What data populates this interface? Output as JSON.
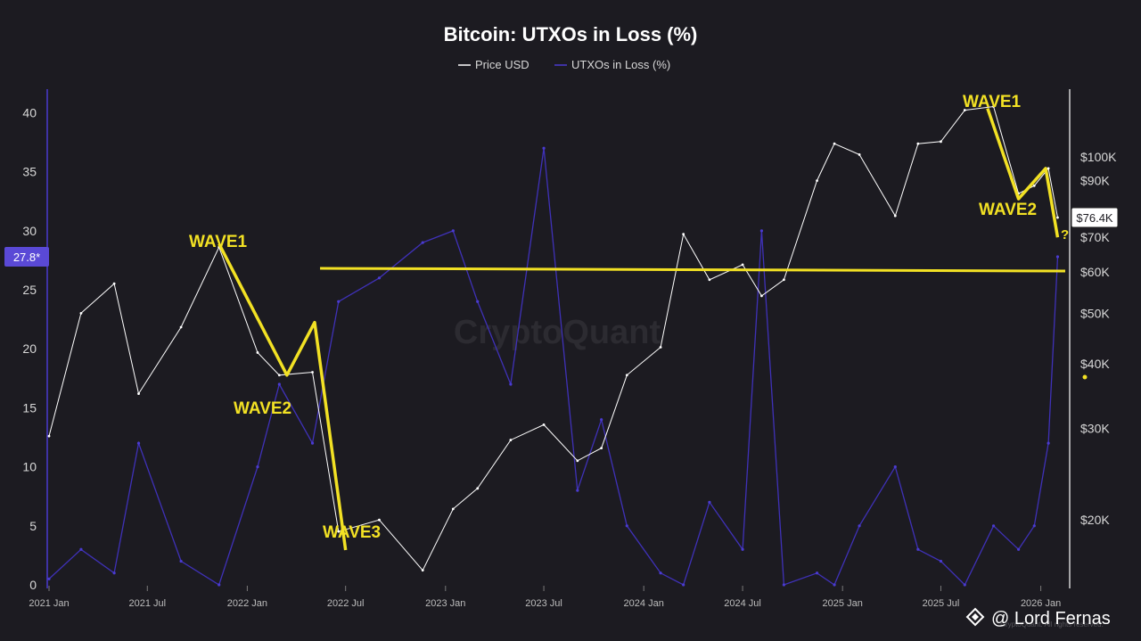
{
  "chart_data": {
    "type": "line",
    "title": "Bitcoin: UTXOs in Loss (%)",
    "legend_placement": "top-center",
    "grid": false,
    "series": [
      {
        "name": "Price USD",
        "color": "#ffffff",
        "axis": "right"
      },
      {
        "name": "UTXOs in Loss (%)",
        "color": "#3f31b8",
        "axis": "left"
      }
    ],
    "x": [
      "2021-01-01",
      "2021-03-01",
      "2021-05-01",
      "2021-06-15",
      "2021-09-01",
      "2021-11-10",
      "2022-01-20",
      "2022-03-01",
      "2022-05-01",
      "2022-06-18",
      "2022-09-01",
      "2022-11-20",
      "2023-01-15",
      "2023-03-01",
      "2023-05-01",
      "2023-07-01",
      "2023-09-01",
      "2023-10-15",
      "2023-12-01",
      "2024-02-01",
      "2024-03-14",
      "2024-05-01",
      "2024-07-01",
      "2024-08-05",
      "2024-09-15",
      "2024-11-15",
      "2024-12-17",
      "2025-02-01",
      "2025-04-08",
      "2025-05-20",
      "2025-07-01",
      "2025-08-14",
      "2025-10-06",
      "2025-11-21",
      "2025-12-20",
      "2026-01-15",
      "2026-02-01"
    ],
    "price_usd": [
      29000,
      50000,
      57000,
      35000,
      47000,
      67000,
      42000,
      38000,
      38500,
      19000,
      20000,
      16000,
      21000,
      23000,
      28500,
      30500,
      26000,
      27500,
      38000,
      43000,
      71000,
      58000,
      62000,
      54000,
      58000,
      90000,
      106000,
      101000,
      77000,
      106000,
      107000,
      123000,
      125000,
      85000,
      88000,
      95000,
      76400
    ],
    "utxos_in_loss_pct": [
      0.5,
      3,
      1,
      12,
      2,
      0,
      10,
      17,
      12,
      24,
      26,
      29,
      30,
      24,
      17,
      37,
      8,
      14,
      5,
      1,
      0,
      7,
      3,
      30,
      0,
      1,
      0,
      5,
      10,
      3,
      2,
      0,
      5,
      3,
      5,
      12,
      27.8
    ],
    "left_axis": {
      "min": 0,
      "max": 42,
      "ticks": [
        0,
        5,
        10,
        15,
        20,
        25,
        30,
        35,
        40
      ],
      "current_label": "27.8*",
      "current_value": 27.8
    },
    "right_axis": {
      "scale": "log",
      "min": 15000,
      "max": 135000,
      "ticks": [
        {
          "value": 20000,
          "label": "$20K"
        },
        {
          "value": 30000,
          "label": "$30K"
        },
        {
          "value": 40000,
          "label": "$40K"
        },
        {
          "value": 50000,
          "label": "$50K"
        },
        {
          "value": 60000,
          "label": "$60K"
        },
        {
          "value": 70000,
          "label": "$70K"
        },
        {
          "value": 90000,
          "label": "$90K"
        },
        {
          "value": 100000,
          "label": "$100K"
        }
      ],
      "current_label": "$76.4K",
      "current_value": 76400
    },
    "x_ticks": [
      {
        "date": "2021-01-01",
        "label": "2021 Jan"
      },
      {
        "date": "2021-07-01",
        "label": "2021 Jul"
      },
      {
        "date": "2022-01-01",
        "label": "2022 Jan"
      },
      {
        "date": "2022-07-01",
        "label": "2022 Jul"
      },
      {
        "date": "2023-01-01",
        "label": "2023 Jan"
      },
      {
        "date": "2023-07-01",
        "label": "2023 Jul"
      },
      {
        "date": "2024-01-01",
        "label": "2024 Jan"
      },
      {
        "date": "2024-07-01",
        "label": "2024 Jul"
      },
      {
        "date": "2025-01-01",
        "label": "2025 Jan"
      },
      {
        "date": "2025-07-01",
        "label": "2025 Jul"
      },
      {
        "date": "2026-01-01",
        "label": "2026 Jan"
      }
    ],
    "annotations": {
      "support_line_price": 61000,
      "support_line_start": "2022-05-15",
      "wave_lines_2021_2022": [
        {
          "date": "2021-11-10",
          "price": 68000
        },
        {
          "date": "2022-03-15",
          "price": 38000
        },
        {
          "date": "2022-05-05",
          "price": 48000
        },
        {
          "date": "2022-07-01",
          "price": 17500
        }
      ],
      "wave_lines_2025": [
        {
          "date": "2025-09-25",
          "price": 124000
        },
        {
          "date": "2025-11-21",
          "price": 83000
        },
        {
          "date": "2026-01-10",
          "price": 95000
        },
        {
          "date": "2026-02-01",
          "price": 70000
        }
      ],
      "labels": [
        {
          "text": "WAVE1",
          "anchor": "2021-11"
        },
        {
          "text": "WAVE2",
          "anchor": "2022-03"
        },
        {
          "text": "WAVE3",
          "anchor": "2022-07"
        },
        {
          "text": "WAVE1",
          "anchor": "2025-10"
        },
        {
          "text": "WAVE2",
          "anchor": "2025-12"
        },
        {
          "text": "?",
          "anchor": "2026-02"
        }
      ]
    }
  },
  "watermark": "CryptoQuant",
  "credit": "@ Lord Fernas",
  "small_watermark": "CryptoQuant. All rights reserved."
}
